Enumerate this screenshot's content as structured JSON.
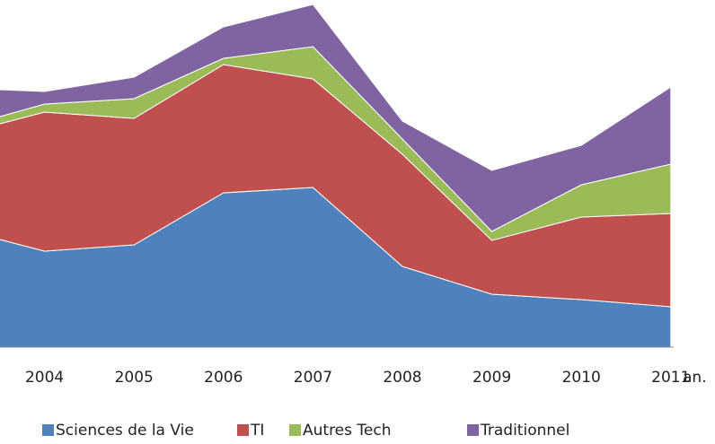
{
  "chart_data": {
    "type": "stacked-area",
    "categories": [
      null,
      "2004",
      "2005",
      "2006",
      "2007",
      "2008",
      "2009",
      "2010",
      "2011"
    ],
    "x_label": "an.",
    "series": [
      {
        "name": "Sciences de la Vie",
        "color": "#4f81bd",
        "values": [
          133,
          107,
          114,
          172,
          178,
          90,
          59,
          53,
          45
        ]
      },
      {
        "name": "TI",
        "color": "#c0504d",
        "values": [
          103,
          155,
          141,
          143,
          121,
          125,
          60,
          92,
          104
        ]
      },
      {
        "name": "Autres Tech",
        "color": "#9bbb59",
        "values": [
          7,
          9,
          22,
          7,
          36,
          17,
          10,
          36,
          55
        ]
      },
      {
        "name": "Traditionnel",
        "color": "#8064a2",
        "values": [
          46,
          14,
          24,
          35,
          47,
          20,
          68,
          44,
          86
        ]
      }
    ],
    "ylim": [
      0,
      387
    ],
    "legend": "bottom"
  }
}
